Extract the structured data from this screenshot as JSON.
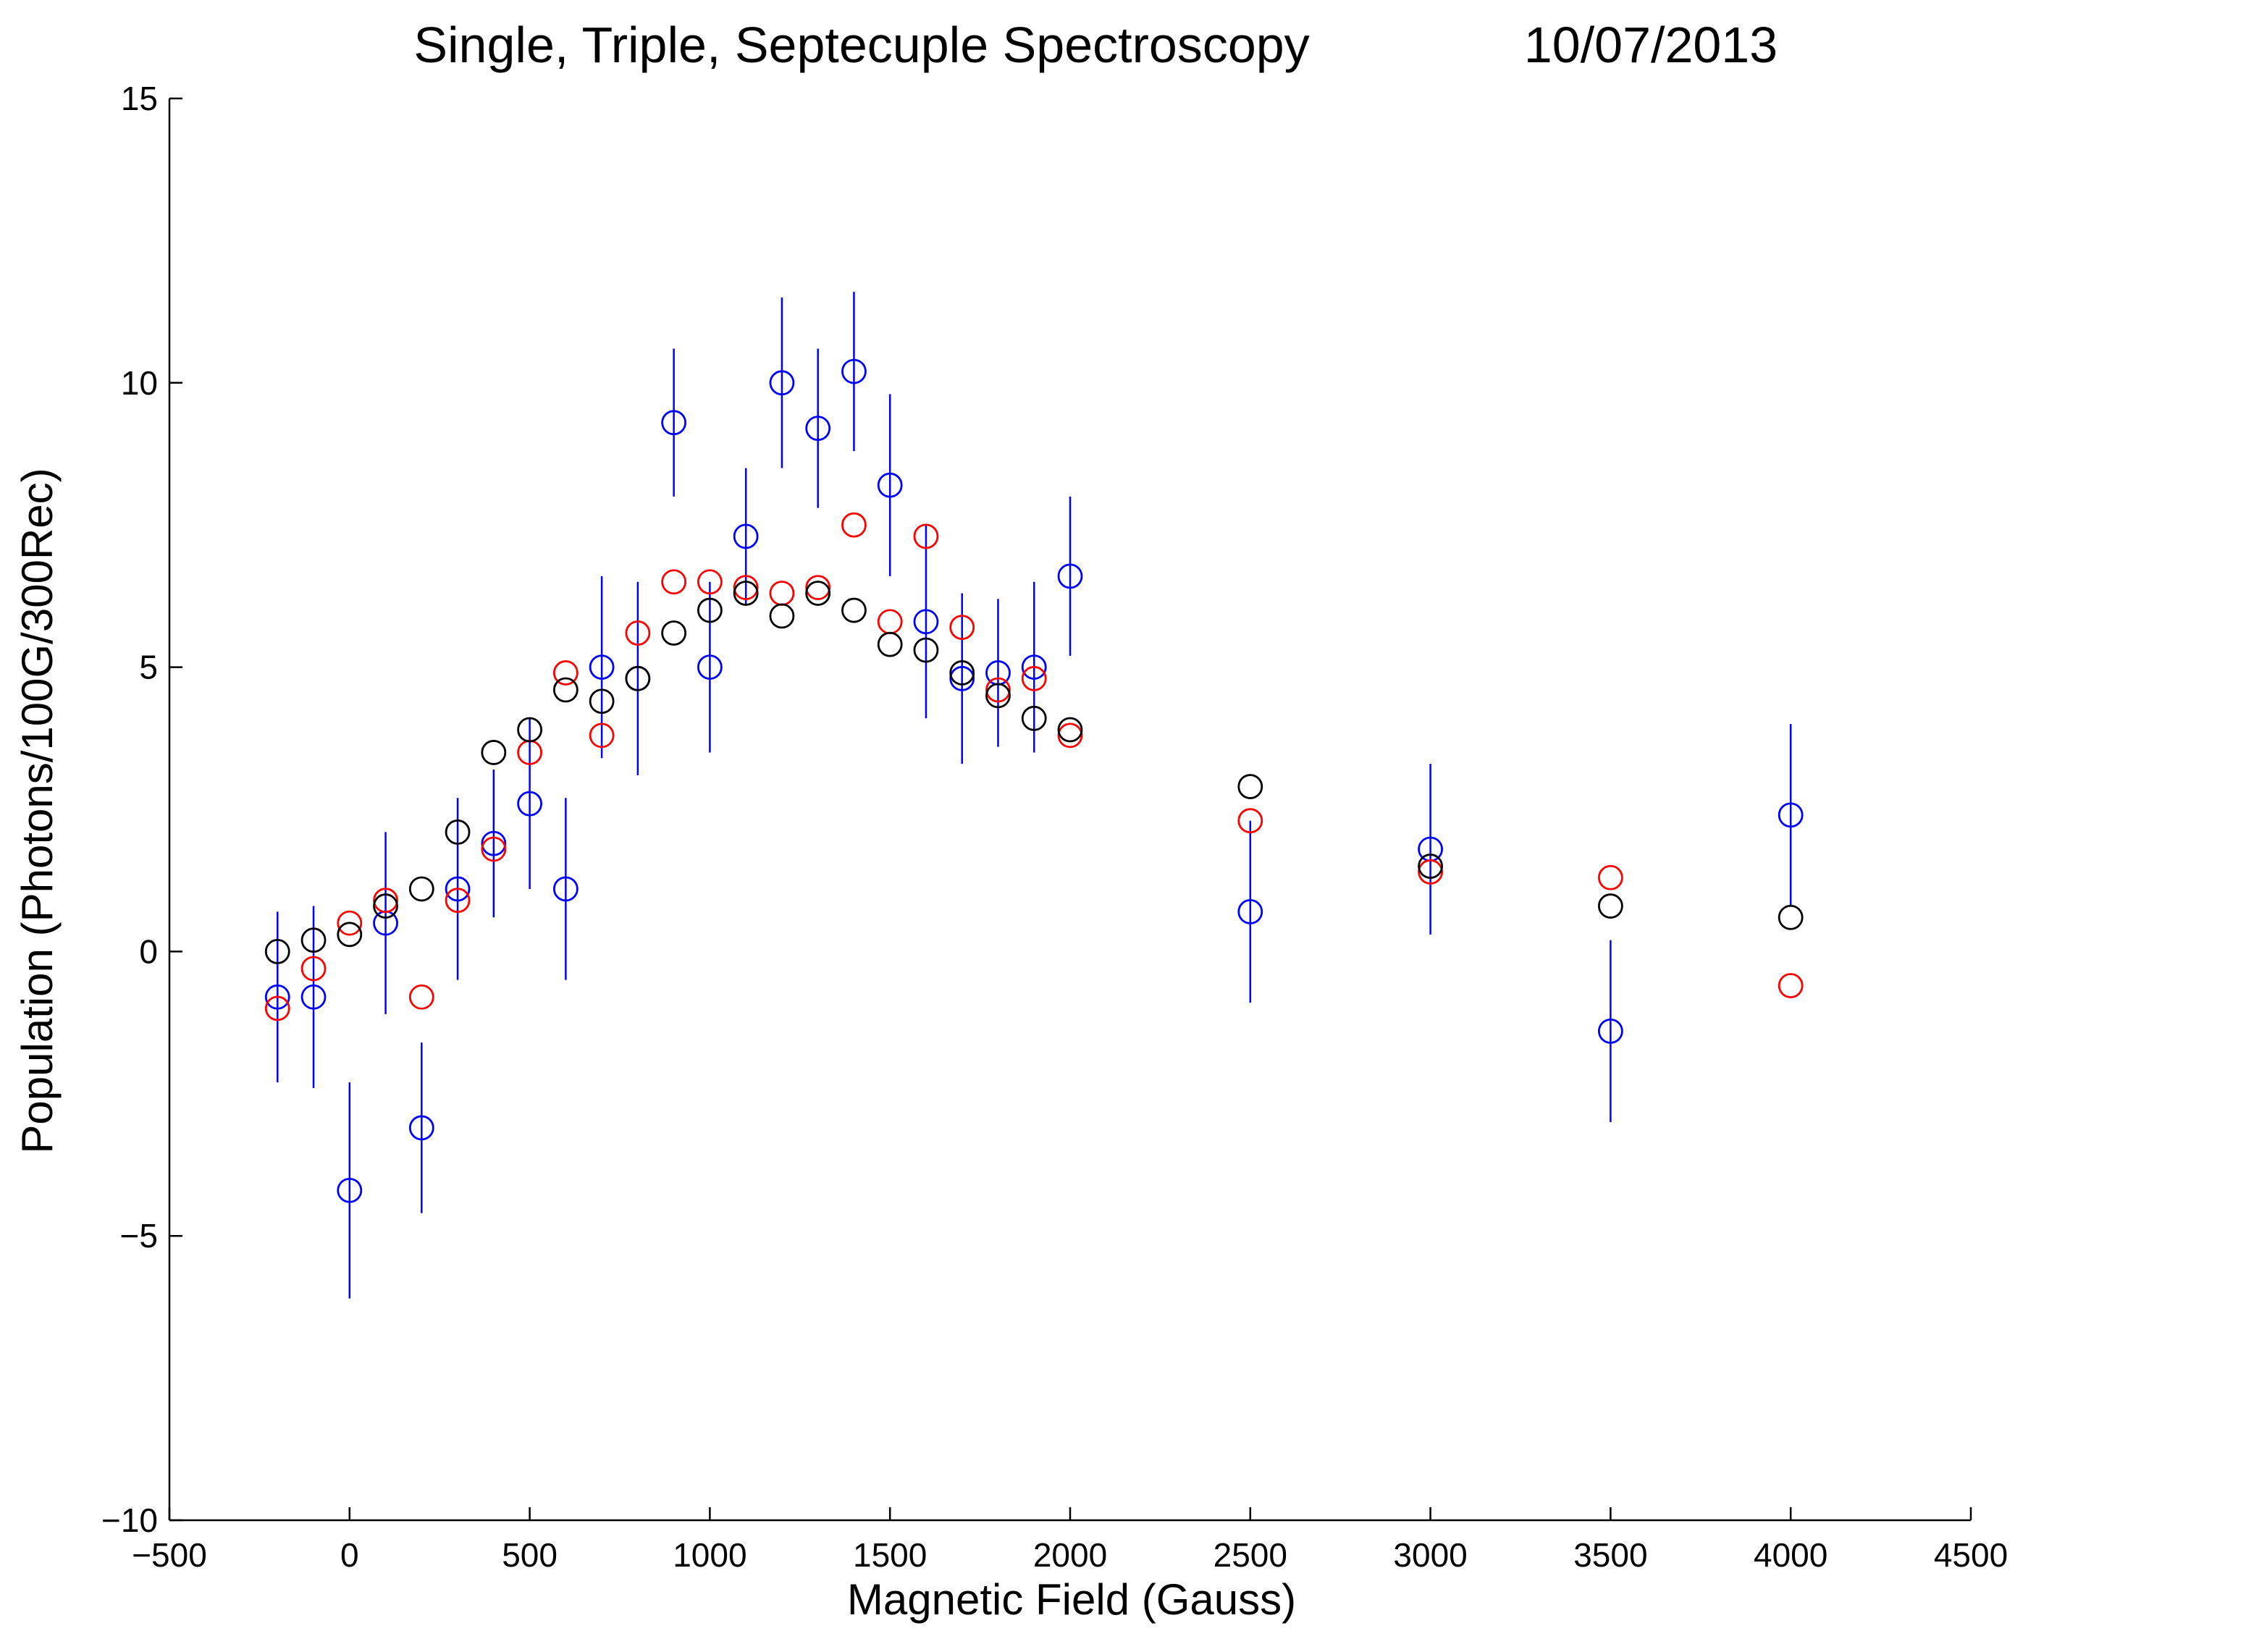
{
  "chart_data": {
    "type": "scatter",
    "title": "Single, Triple, Septecuple Spectroscopy",
    "date": "10/07/2013",
    "xlabel": "Magnetic Field (Gauss)",
    "ylabel": "Population (Photons/100G/300Rec)",
    "xlim": [
      -500,
      4500
    ],
    "ylim": [
      -10,
      15
    ],
    "xticks": [
      -500,
      0,
      500,
      1000,
      1500,
      2000,
      2500,
      3000,
      3500,
      4000,
      4500
    ],
    "yticks": [
      -10,
      -5,
      0,
      5,
      10,
      15
    ],
    "xtick_labels": [
      "−500",
      "0",
      "500",
      "1000",
      "1500",
      "2000",
      "2500",
      "3000",
      "3500",
      "4000",
      "4500"
    ],
    "ytick_labels": [
      "−10",
      "−5",
      "0",
      "5",
      "10",
      "15"
    ],
    "grid": false,
    "legend": "none",
    "series": [
      {
        "color": "#0000ff",
        "x": [
          -200,
          -100,
          0,
          100,
          200,
          300,
          400,
          500,
          600,
          700,
          800,
          900,
          1000,
          1100,
          1200,
          1300,
          1400,
          1500,
          1600,
          1700,
          1800,
          1900,
          2000,
          2500,
          3000,
          3500,
          4000
        ],
        "y": [
          -0.8,
          -0.8,
          -4.2,
          0.5,
          -3.1,
          1.1,
          1.9,
          2.6,
          1.1,
          5.0,
          4.8,
          9.3,
          5.0,
          7.3,
          10.0,
          9.2,
          10.2,
          8.2,
          5.8,
          4.8,
          4.9,
          5.0,
          6.6,
          0.7,
          1.8,
          -1.4,
          2.4
        ],
        "err": [
          1.5,
          1.6,
          1.9,
          1.6,
          1.5,
          1.6,
          1.3,
          1.5,
          1.6,
          1.6,
          1.7,
          1.3,
          1.5,
          1.2,
          1.5,
          1.4,
          1.4,
          1.6,
          1.7,
          1.5,
          1.3,
          1.5,
          1.4,
          1.6,
          1.5,
          1.6,
          1.6
        ]
      },
      {
        "color": "#ff0000",
        "x": [
          -200,
          -100,
          0,
          100,
          200,
          300,
          400,
          500,
          600,
          700,
          800,
          900,
          1000,
          1100,
          1200,
          1300,
          1400,
          1500,
          1600,
          1700,
          1800,
          1900,
          2000,
          2500,
          3000,
          3500,
          4000
        ],
        "y": [
          -1.0,
          -0.3,
          0.5,
          0.9,
          -0.8,
          0.9,
          1.8,
          3.5,
          4.9,
          3.8,
          5.6,
          6.5,
          6.5,
          6.4,
          6.3,
          6.4,
          7.5,
          5.8,
          7.3,
          5.7,
          4.6,
          4.8,
          3.8,
          2.3,
          1.4,
          1.3,
          -0.6
        ]
      },
      {
        "color": "#000000",
        "x": [
          -200,
          -100,
          0,
          100,
          200,
          300,
          400,
          500,
          600,
          700,
          800,
          900,
          1000,
          1100,
          1200,
          1300,
          1400,
          1500,
          1600,
          1700,
          1800,
          1900,
          2000,
          2500,
          3000,
          3500,
          4000
        ],
        "y": [
          0.0,
          0.2,
          0.3,
          0.8,
          1.1,
          2.1,
          3.5,
          3.9,
          4.6,
          4.4,
          4.8,
          5.6,
          6.0,
          6.3,
          5.9,
          6.3,
          6.0,
          5.4,
          5.3,
          4.9,
          4.5,
          4.1,
          3.9,
          2.9,
          1.5,
          0.8,
          0.6
        ]
      }
    ]
  }
}
